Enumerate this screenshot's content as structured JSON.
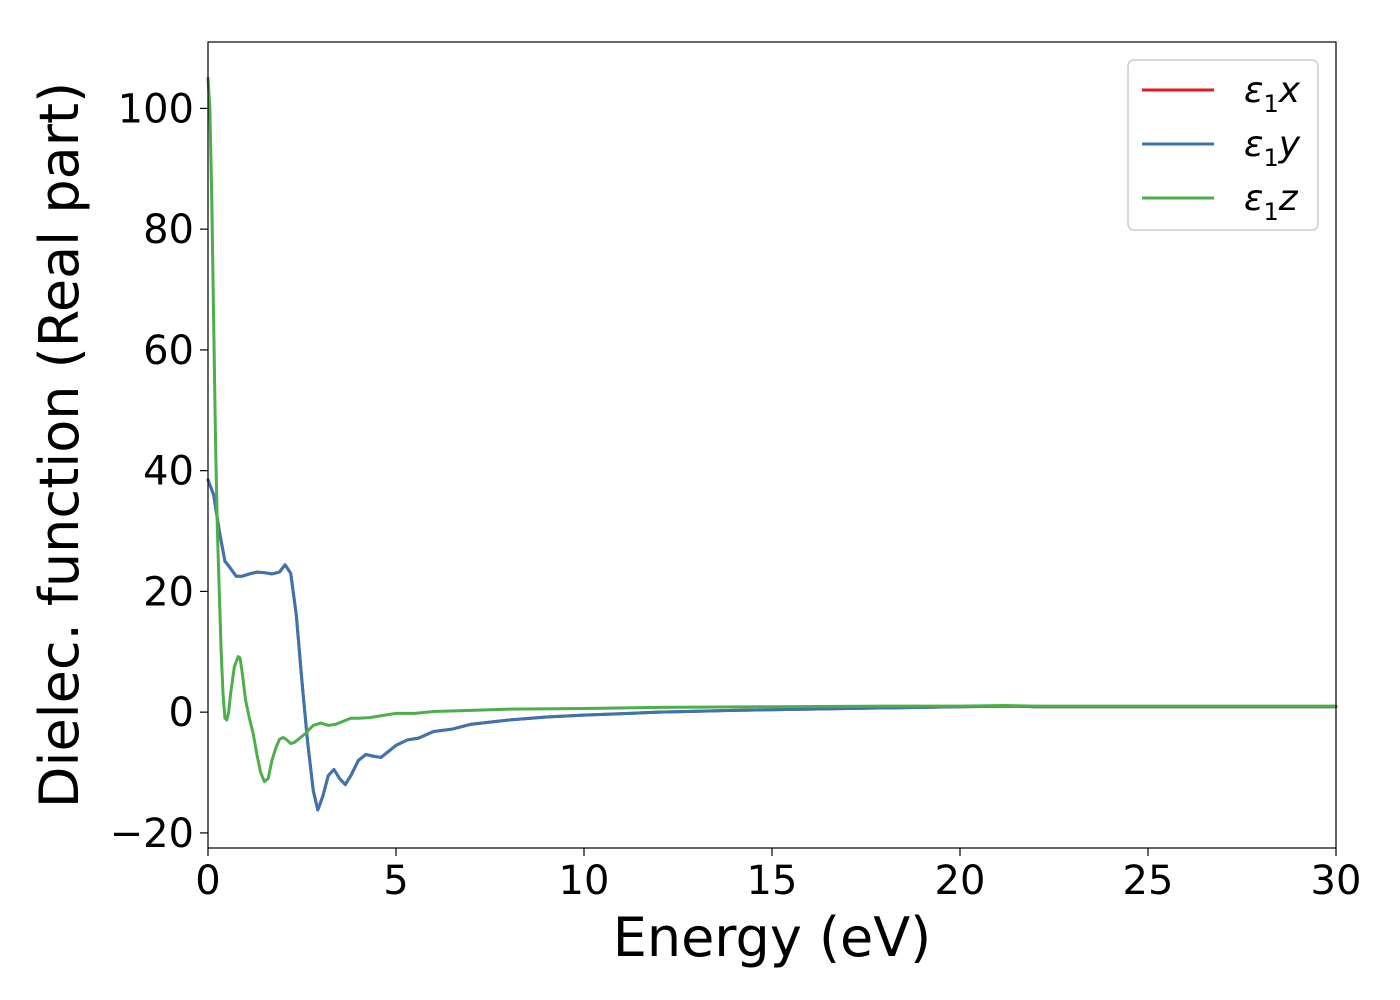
{
  "chart_data": {
    "type": "line",
    "xlabel": "Energy (eV)",
    "ylabel": "Dielec. function (Real part)",
    "xlim": [
      0,
      30
    ],
    "ylim": [
      -22.5,
      111
    ],
    "xticks": [
      0,
      5,
      10,
      15,
      20,
      25,
      30
    ],
    "xtick_labels": [
      "0",
      "5",
      "10",
      "15",
      "20",
      "25",
      "30"
    ],
    "yticks": [
      -20,
      0,
      20,
      40,
      60,
      80,
      100
    ],
    "ytick_labels": [
      "−20",
      "0",
      "20",
      "40",
      "60",
      "80",
      "100"
    ],
    "grid": false,
    "legend_position": "top-right",
    "series": [
      {
        "name": "ε₁x",
        "legend_base": "ε",
        "legend_sub": "1",
        "legend_var": "x",
        "color": "#e41a1c",
        "x": [
          0,
          0.15,
          0.3,
          0.45,
          0.6,
          0.75,
          0.9,
          1.1,
          1.3,
          1.5,
          1.7,
          1.9,
          2.05,
          2.2,
          2.35,
          2.5,
          2.65,
          2.8,
          2.92,
          3.05,
          3.2,
          3.35,
          3.5,
          3.65,
          3.8,
          4.0,
          4.2,
          4.4,
          4.6,
          4.8,
          5.0,
          5.3,
          5.6,
          6.0,
          6.5,
          7.0,
          8.0,
          9.0,
          10.0,
          12.0,
          14.0,
          16.0,
          18.0,
          20.0,
          21.3,
          22.0,
          25.0,
          28.0,
          30.0
        ],
        "y": [
          38.5,
          36.0,
          30.0,
          25.0,
          23.8,
          22.5,
          22.5,
          22.9,
          23.2,
          23.1,
          22.9,
          23.2,
          24.4,
          23.0,
          16.0,
          5.0,
          -5.0,
          -13.0,
          -16.2,
          -14.0,
          -10.5,
          -9.5,
          -11.0,
          -12.0,
          -10.5,
          -8.0,
          -7.0,
          -7.3,
          -7.5,
          -6.5,
          -5.5,
          -4.6,
          -4.3,
          -3.2,
          -2.8,
          -2.0,
          -1.3,
          -0.8,
          -0.5,
          0.0,
          0.3,
          0.5,
          0.7,
          0.9,
          1.0,
          0.9,
          0.9,
          0.9,
          0.9
        ]
      },
      {
        "name": "ε₁y",
        "legend_base": "ε",
        "legend_sub": "1",
        "legend_var": "y",
        "color": "#3a75b0",
        "x": [
          0,
          0.15,
          0.3,
          0.45,
          0.6,
          0.75,
          0.9,
          1.1,
          1.3,
          1.5,
          1.7,
          1.9,
          2.05,
          2.2,
          2.35,
          2.5,
          2.65,
          2.8,
          2.92,
          3.05,
          3.2,
          3.35,
          3.5,
          3.65,
          3.8,
          4.0,
          4.2,
          4.4,
          4.6,
          4.8,
          5.0,
          5.3,
          5.6,
          6.0,
          6.5,
          7.0,
          8.0,
          9.0,
          10.0,
          12.0,
          14.0,
          16.0,
          18.0,
          20.0,
          21.3,
          22.0,
          25.0,
          28.0,
          30.0
        ],
        "y": [
          38.5,
          36.0,
          30.0,
          25.0,
          23.8,
          22.5,
          22.5,
          22.9,
          23.2,
          23.1,
          22.9,
          23.2,
          24.4,
          23.0,
          16.0,
          5.0,
          -5.0,
          -13.0,
          -16.2,
          -14.0,
          -10.5,
          -9.5,
          -11.0,
          -12.0,
          -10.5,
          -8.0,
          -7.0,
          -7.3,
          -7.5,
          -6.5,
          -5.5,
          -4.6,
          -4.3,
          -3.2,
          -2.8,
          -2.0,
          -1.3,
          -0.8,
          -0.5,
          0.0,
          0.3,
          0.5,
          0.7,
          0.9,
          1.0,
          0.9,
          0.9,
          0.9,
          0.9
        ]
      },
      {
        "name": "ε₁z",
        "legend_base": "ε",
        "legend_sub": "1",
        "legend_var": "z",
        "color": "#4daf4a",
        "x": [
          0,
          0.05,
          0.1,
          0.15,
          0.2,
          0.25,
          0.3,
          0.35,
          0.4,
          0.45,
          0.5,
          0.55,
          0.6,
          0.7,
          0.8,
          0.85,
          0.9,
          1.0,
          1.1,
          1.2,
          1.3,
          1.4,
          1.5,
          1.6,
          1.7,
          1.8,
          1.9,
          2.0,
          2.1,
          2.2,
          2.3,
          2.4,
          2.5,
          2.6,
          2.7,
          2.8,
          3.0,
          3.2,
          3.4,
          3.6,
          3.8,
          4.0,
          4.3,
          4.6,
          5.0,
          5.5,
          6.0,
          7.0,
          8.0,
          10.0,
          12.0,
          15.0,
          18.0,
          20.0,
          21.2,
          22.0,
          25.0,
          30.0
        ],
        "y": [
          105,
          100,
          85,
          65,
          45,
          30,
          20,
          10,
          3,
          -1,
          -1.3,
          0,
          3,
          7.5,
          9.2,
          9.0,
          7,
          2,
          -1,
          -3.5,
          -7,
          -10,
          -11.5,
          -11,
          -8,
          -6,
          -4.5,
          -4.2,
          -4.6,
          -5.2,
          -5.0,
          -4.5,
          -4.0,
          -3.5,
          -2.8,
          -2.2,
          -1.8,
          -2.2,
          -2.0,
          -1.5,
          -1.0,
          -1.0,
          -0.9,
          -0.6,
          -0.2,
          -0.2,
          0.1,
          0.3,
          0.5,
          0.6,
          0.8,
          0.9,
          1.0,
          1.0,
          1.1,
          1.0,
          1.0,
          1.0
        ]
      }
    ]
  }
}
